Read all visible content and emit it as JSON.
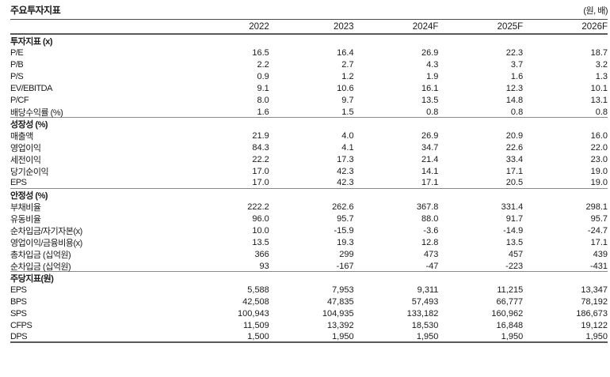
{
  "header": {
    "title": "주요투자지표",
    "unit": "(원, 배)"
  },
  "table": {
    "columns": [
      "2022",
      "2023",
      "2024F",
      "2025F",
      "2026F"
    ],
    "sections": [
      {
        "name": "투자지표 (x)",
        "rows": [
          {
            "label": "P/E",
            "values": [
              "16.5",
              "16.4",
              "26.9",
              "22.3",
              "18.7"
            ]
          },
          {
            "label": "P/B",
            "values": [
              "2.2",
              "2.7",
              "4.3",
              "3.7",
              "3.2"
            ]
          },
          {
            "label": "P/S",
            "values": [
              "0.9",
              "1.2",
              "1.9",
              "1.6",
              "1.3"
            ]
          },
          {
            "label": "EV/EBITDA",
            "values": [
              "9.1",
              "10.6",
              "16.1",
              "12.3",
              "10.1"
            ]
          },
          {
            "label": "P/CF",
            "values": [
              "8.0",
              "9.7",
              "13.5",
              "14.8",
              "13.1"
            ]
          },
          {
            "label": "배당수익률 (%)",
            "values": [
              "1.6",
              "1.5",
              "0.8",
              "0.8",
              "0.8"
            ]
          }
        ]
      },
      {
        "name": "성장성 (%)",
        "rows": [
          {
            "label": "매출액",
            "values": [
              "21.9",
              "4.0",
              "26.9",
              "20.9",
              "16.0"
            ]
          },
          {
            "label": "영업이익",
            "values": [
              "84.3",
              "4.1",
              "34.7",
              "22.6",
              "22.0"
            ]
          },
          {
            "label": "세전이익",
            "values": [
              "22.2",
              "17.3",
              "21.4",
              "33.4",
              "23.0"
            ]
          },
          {
            "label": "당기순이익",
            "values": [
              "17.0",
              "42.3",
              "14.1",
              "17.1",
              "19.0"
            ]
          },
          {
            "label": "EPS",
            "values": [
              "17.0",
              "42.3",
              "17.1",
              "20.5",
              "19.0"
            ]
          }
        ]
      },
      {
        "name": "안정성 (%)",
        "rows": [
          {
            "label": "부채비율",
            "values": [
              "222.2",
              "262.6",
              "367.8",
              "331.4",
              "298.1"
            ]
          },
          {
            "label": "유동비율",
            "values": [
              "96.0",
              "95.7",
              "88.0",
              "91.7",
              "95.7"
            ]
          },
          {
            "label": "순차입금/자기자본(x)",
            "values": [
              "10.0",
              "-15.9",
              "-3.6",
              "-14.9",
              "-24.7"
            ]
          },
          {
            "label": "영업이익/금융비용(x)",
            "values": [
              "13.5",
              "19.3",
              "12.8",
              "13.5",
              "17.1"
            ]
          },
          {
            "label": "총차입금 (십억원)",
            "values": [
              "366",
              "299",
              "473",
              "457",
              "439"
            ]
          },
          {
            "label": "순차입금 (십억원)",
            "values": [
              "93",
              "-167",
              "-47",
              "-223",
              "-431"
            ]
          }
        ]
      },
      {
        "name": "주당지표(원)",
        "rows": [
          {
            "label": "EPS",
            "values": [
              "5,588",
              "7,953",
              "9,311",
              "11,215",
              "13,347"
            ]
          },
          {
            "label": "BPS",
            "values": [
              "42,508",
              "47,835",
              "57,493",
              "66,777",
              "78,192"
            ]
          },
          {
            "label": "SPS",
            "values": [
              "100,943",
              "104,935",
              "133,182",
              "160,962",
              "186,673"
            ]
          },
          {
            "label": "CFPS",
            "values": [
              "11,509",
              "13,392",
              "18,530",
              "16,848",
              "19,122"
            ]
          },
          {
            "label": "DPS",
            "values": [
              "1,500",
              "1,950",
              "1,950",
              "1,950",
              "1,950"
            ]
          }
        ]
      }
    ]
  },
  "colors": {
    "text": "#1a1a1a",
    "line_strong": "#5a5a5a",
    "line_light": "#8a8a8a"
  }
}
